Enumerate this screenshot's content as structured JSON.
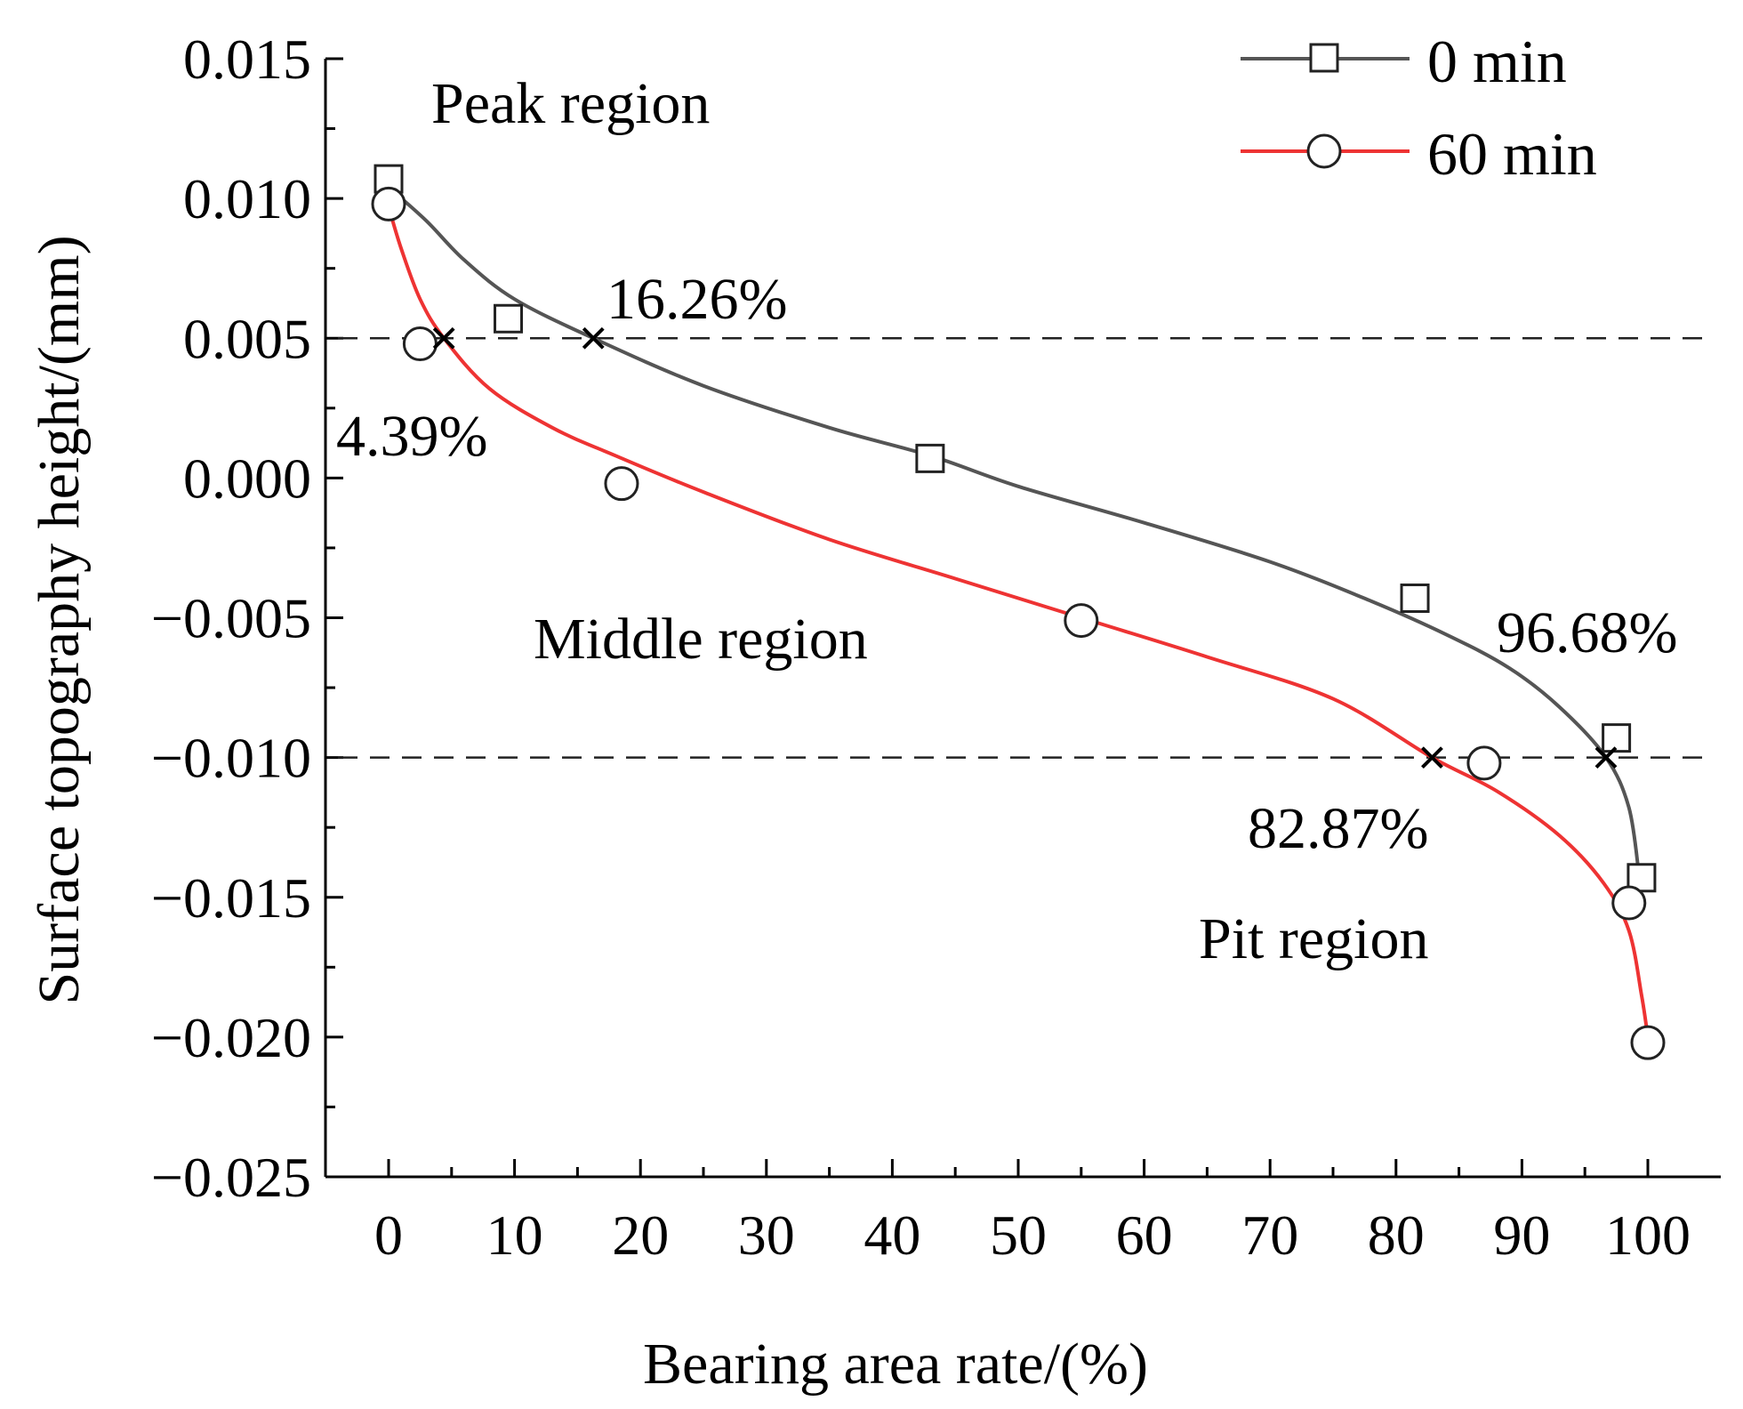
{
  "chart_data": {
    "type": "line",
    "title": "",
    "xlabel": "Bearing area rate/(%)",
    "ylabel": "Surface topography height/(mm)",
    "xlim": [
      -5,
      105
    ],
    "ylim": [
      -0.025,
      0.015
    ],
    "x_ticks": [
      0,
      10,
      20,
      30,
      40,
      50,
      60,
      70,
      80,
      90,
      100
    ],
    "y_ticks": [
      0.015,
      0.01,
      0.005,
      0.0,
      -0.005,
      -0.01,
      -0.015,
      -0.02,
      -0.025
    ],
    "x_tick_labels": [
      "0",
      "10",
      "20",
      "30",
      "40",
      "50",
      "60",
      "70",
      "80",
      "90",
      "100"
    ],
    "y_tick_labels": [
      "0.015",
      "0.010",
      "0.005",
      "0.000",
      "−0.005",
      "−0.010",
      "−0.015",
      "−0.020",
      "−0.025"
    ],
    "grid": false,
    "legend_position": "top-right",
    "series": [
      {
        "name": "0 min",
        "color": "#555555",
        "marker": "square",
        "curve": [
          [
            0,
            0.0104
          ],
          [
            3,
            0.0092
          ],
          [
            6,
            0.0078
          ],
          [
            10,
            0.0064
          ],
          [
            16.26,
            0.005
          ],
          [
            25,
            0.0033
          ],
          [
            35,
            0.0018
          ],
          [
            43,
            0.0008
          ],
          [
            50,
            -0.0003
          ],
          [
            60,
            -0.0016
          ],
          [
            70,
            -0.003
          ],
          [
            78,
            -0.0044
          ],
          [
            84,
            -0.0056
          ],
          [
            89,
            -0.0068
          ],
          [
            93,
            -0.0082
          ],
          [
            96.68,
            -0.01
          ],
          [
            98.5,
            -0.0118
          ],
          [
            99.3,
            -0.0142
          ]
        ],
        "markers": [
          [
            0,
            0.0107
          ],
          [
            9.5,
            0.0057
          ],
          [
            43,
            0.0007
          ],
          [
            81.5,
            -0.0043
          ],
          [
            97.5,
            -0.0093
          ],
          [
            99.5,
            -0.0143
          ]
        ]
      },
      {
        "name": "60 min",
        "color": "#ee3333",
        "marker": "circle",
        "curve": [
          [
            0,
            0.0097
          ],
          [
            1,
            0.0082
          ],
          [
            2.5,
            0.0064
          ],
          [
            4.39,
            0.005
          ],
          [
            8,
            0.0032
          ],
          [
            13,
            0.0018
          ],
          [
            18,
            0.0008
          ],
          [
            25,
            -0.0005
          ],
          [
            35,
            -0.0022
          ],
          [
            45,
            -0.0036
          ],
          [
            55,
            -0.005
          ],
          [
            65,
            -0.0064
          ],
          [
            75,
            -0.0079
          ],
          [
            82.87,
            -0.01
          ],
          [
            88,
            -0.0112
          ],
          [
            93,
            -0.0128
          ],
          [
            96.5,
            -0.0145
          ],
          [
            98.5,
            -0.0162
          ],
          [
            99.5,
            -0.0185
          ],
          [
            100,
            -0.02
          ]
        ],
        "markers": [
          [
            0,
            0.0098
          ],
          [
            2.5,
            0.0048
          ],
          [
            18.5,
            -0.0002
          ],
          [
            55,
            -0.0051
          ],
          [
            87,
            -0.0102
          ],
          [
            98.5,
            -0.0152
          ],
          [
            100,
            -0.0202
          ]
        ]
      }
    ],
    "reference_lines": [
      0.005,
      -0.01
    ],
    "intersections": [
      {
        "x": 4.39,
        "y": 0.005,
        "label": "4.39%"
      },
      {
        "x": 16.26,
        "y": 0.005,
        "label": "16.26%"
      },
      {
        "x": 82.87,
        "y": -0.01,
        "label": "82.87%"
      },
      {
        "x": 96.68,
        "y": -0.01,
        "label": "96.68%"
      }
    ],
    "region_labels": {
      "peak": "Peak region",
      "middle": "Middle region",
      "pit": "Pit region"
    },
    "legend": [
      {
        "name": "0 min",
        "color": "#555555",
        "marker": "square"
      },
      {
        "name": "60 min",
        "color": "#ee3333",
        "marker": "circle"
      }
    ]
  }
}
